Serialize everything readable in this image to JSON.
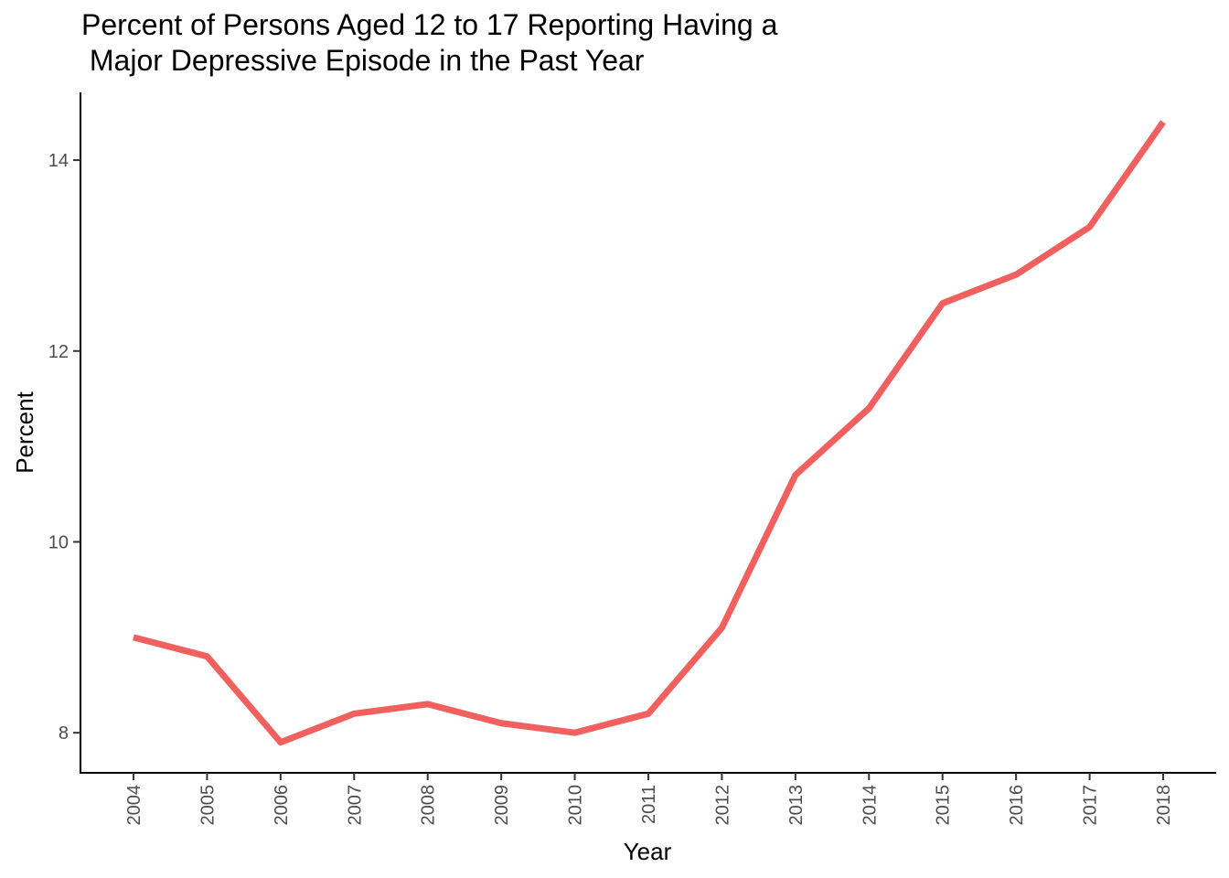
{
  "chart_data": {
    "type": "line",
    "title": "Percent of Persons Aged 12 to 17 Reporting Having a\n Major Depressive Episode in the Past Year",
    "xlabel": "Year",
    "ylabel": "Percent",
    "x": [
      "2004",
      "2005",
      "2006",
      "2007",
      "2008",
      "2009",
      "2010",
      "2011",
      "2012",
      "2013",
      "2014",
      "2015",
      "2016",
      "2017",
      "2018"
    ],
    "series": [
      {
        "values": [
          9.0,
          8.8,
          7.9,
          8.2,
          8.3,
          8.1,
          8.0,
          8.2,
          9.1,
          10.7,
          11.4,
          12.5,
          12.8,
          13.3,
          14.4
        ],
        "color": "#f0605e"
      }
    ],
    "yticks": [
      8,
      10,
      12,
      14
    ],
    "ylim": [
      7.58,
      14.71
    ],
    "grid": false,
    "legend": "none"
  }
}
